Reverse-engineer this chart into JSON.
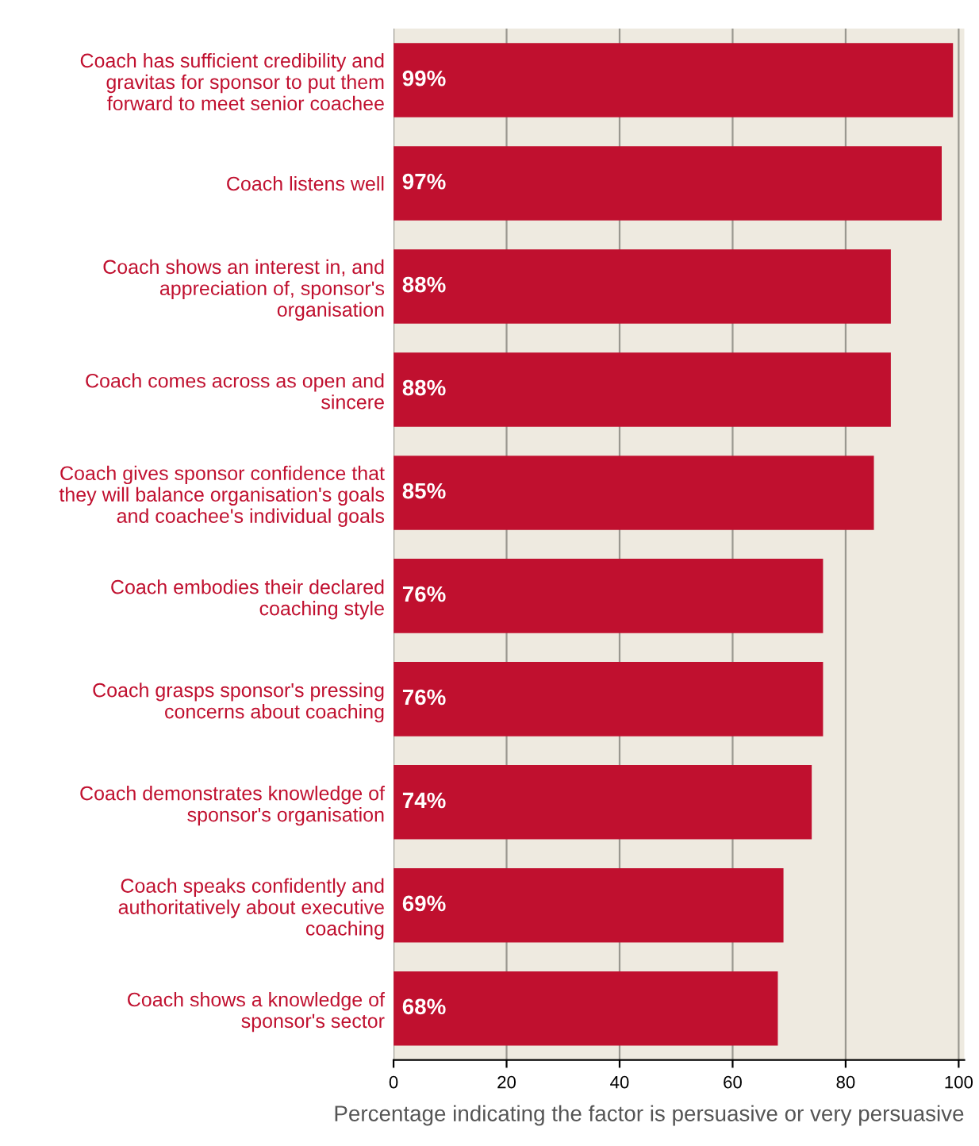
{
  "chart_data": {
    "type": "bar",
    "orientation": "horizontal",
    "xlabel": "Percentage indicating the factor is persuasive or very persuasive",
    "categories": [
      "Coach has sufficient credibility and\ngravitas for sponsor to put them\nforward to meet senior coachee",
      "Coach listens well",
      "Coach shows an interest in, and\nappreciation of, sponsor's\norganisation",
      "Coach comes across as open and\nsincere",
      "Coach gives sponsor confidence that\nthey will balance organisation's goals\nand coachee's individual goals",
      "Coach embodies their declared\ncoaching style",
      "Coach grasps sponsor's pressing\nconcerns about coaching",
      "Coach demonstrates knowledge of\nsponsor's organisation",
      "Coach speaks confidently and\nauthoritatively about executive\ncoaching",
      "Coach shows a knowledge of\nsponsor's sector"
    ],
    "values": [
      99,
      97,
      88,
      88,
      85,
      76,
      76,
      74,
      69,
      68
    ],
    "value_labels": [
      "99%",
      "97%",
      "88%",
      "88%",
      "85%",
      "76%",
      "76%",
      "74%",
      "69%",
      "68%"
    ],
    "color": "#c0102f",
    "xlim": [
      0,
      101
    ],
    "xticks": [
      0,
      20,
      40,
      60,
      80,
      100
    ],
    "grid": "x",
    "legend": false
  }
}
